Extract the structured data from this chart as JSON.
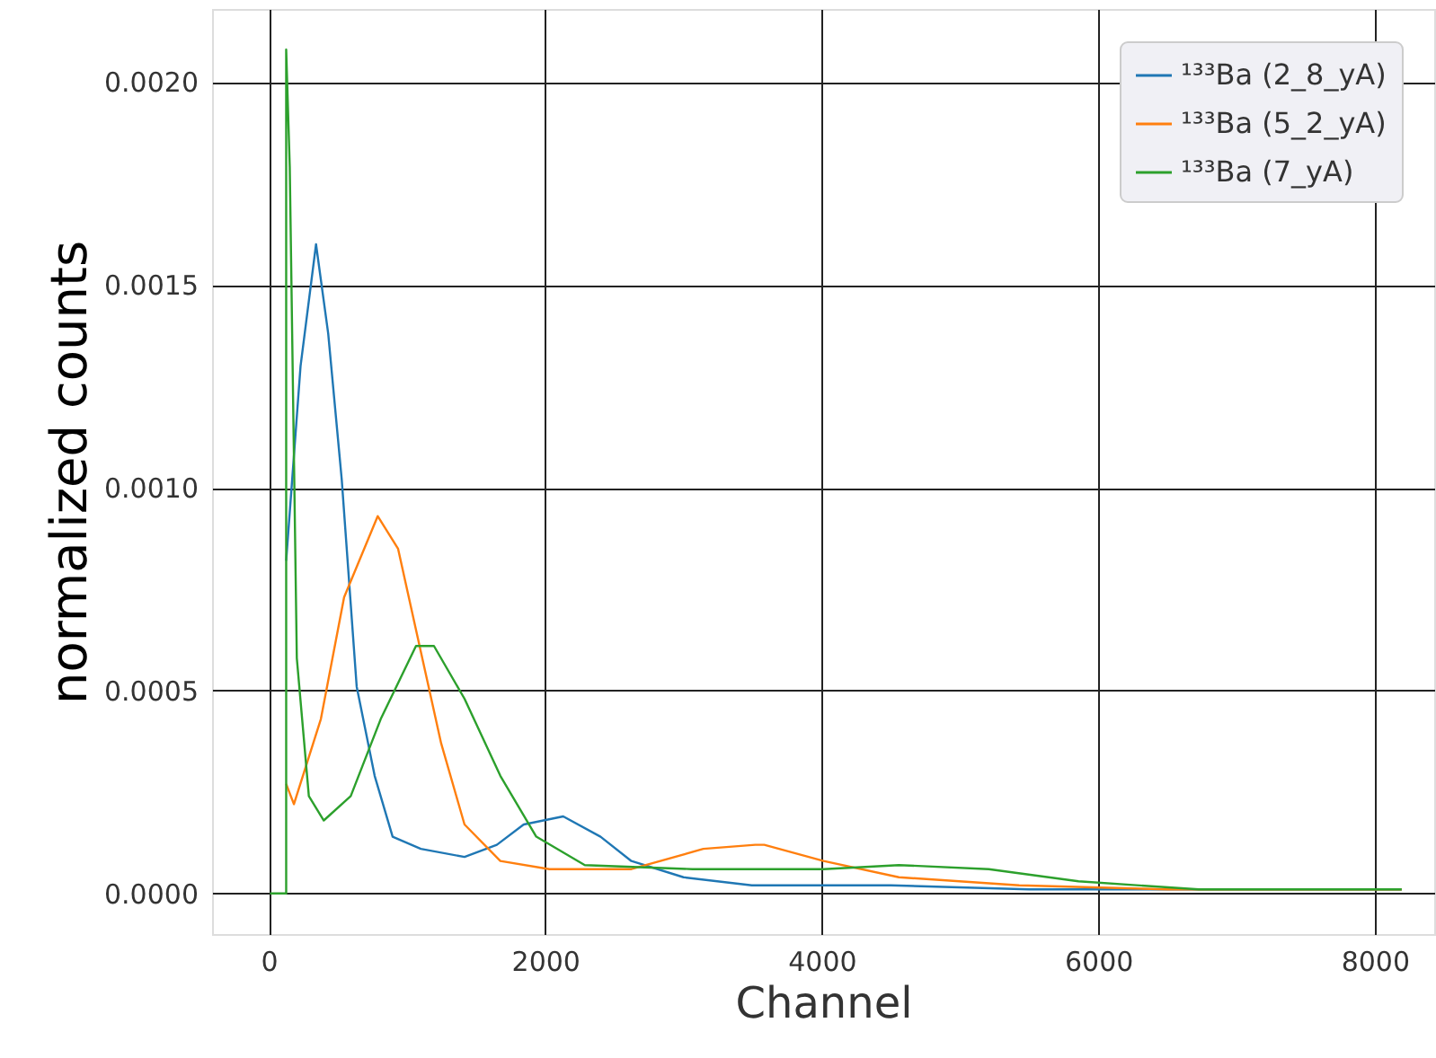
{
  "chart_data": {
    "type": "line",
    "xlabel": "Channel",
    "ylabel": "normalized counts",
    "xlim": [
      -410,
      8430
    ],
    "xticks": [
      0,
      2000,
      4000,
      6000,
      8000
    ],
    "ylim": [
      -0.0001,
      0.00218
    ],
    "yticks": [
      {
        "value": 0,
        "label": "0.0000"
      },
      {
        "value": 0.0005,
        "label": "0.0005"
      },
      {
        "value": 0.001,
        "label": "0.0010"
      },
      {
        "value": 0.0015,
        "label": "0.0015"
      },
      {
        "value": 0.002,
        "label": "0.0020"
      }
    ],
    "grid": true,
    "legend": "top right",
    "line_style": "solid",
    "marker": "none",
    "series": [
      {
        "name": "¹³³Ba (2_8_yA)",
        "color": "#1f77b4",
        "x": [
          126,
          230,
          342,
          430,
          528,
          636,
          766,
          896,
          1100,
          1416,
          1650,
          1844,
          2130,
          2400,
          2623,
          3000,
          3494,
          4500,
          5500,
          6500,
          7500,
          8195
        ],
        "values": [
          0.00082,
          0.0013,
          0.0016,
          0.00138,
          0.00102,
          0.00051,
          0.00029,
          0.00014,
          0.00011,
          9e-05,
          0.00012,
          0.00017,
          0.00019,
          0.00014,
          8e-05,
          4e-05,
          2e-05,
          2e-05,
          1e-05,
          1e-05,
          1e-05,
          1e-05
        ]
      },
      {
        "name": "¹³³Ba (5_2_yA)",
        "color": "#ff7f0e",
        "x": [
          126,
          182,
          377,
          545,
          788,
          935,
          1065,
          1247,
          1416,
          1675,
          2030,
          2623,
          3143,
          3519,
          3584,
          4013,
          4558,
          5428,
          6500,
          8195
        ],
        "values": [
          0.00027,
          0.00022,
          0.00043,
          0.00073,
          0.00093,
          0.00085,
          0.00065,
          0.00037,
          0.00017,
          8e-05,
          6e-05,
          6e-05,
          0.00011,
          0.00012,
          0.00012,
          8e-05,
          4e-05,
          2e-05,
          1e-05,
          1e-05
        ]
      },
      {
        "name": "¹³³Ba (7_yA)",
        "color": "#2ca02c",
        "x": [
          9,
          126,
          126,
          152,
          203,
          290,
          398,
          593,
          810,
          1065,
          1195,
          1416,
          1675,
          1935,
          2286,
          3065,
          3740,
          4013,
          4558,
          5208,
          5857,
          6727,
          8195
        ],
        "values": [
          0,
          0,
          0.00208,
          0.00179,
          0.00058,
          0.00024,
          0.00018,
          0.00024,
          0.00043,
          0.00061,
          0.00061,
          0.00048,
          0.00029,
          0.00014,
          7e-05,
          6e-05,
          6e-05,
          6e-05,
          7e-05,
          6e-05,
          3e-05,
          1e-05,
          1e-05
        ]
      }
    ]
  }
}
